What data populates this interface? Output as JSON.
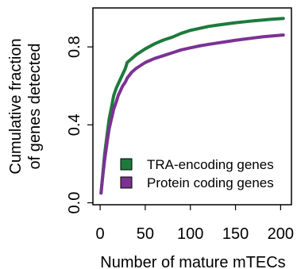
{
  "chart_data": {
    "type": "line",
    "title": "",
    "xlabel": "Number of mature mTECs",
    "ylabel_lines": [
      "Cumulative fraction",
      "of genes detected"
    ],
    "xlim": [
      -8,
      212
    ],
    "ylim": [
      -0.01,
      1.0
    ],
    "x_ticks": [
      0,
      50,
      100,
      150,
      200
    ],
    "x_tick_labels": [
      "0",
      "50",
      "100",
      "150",
      "200"
    ],
    "y_ticks": [
      0.0,
      0.4,
      0.8
    ],
    "y_tick_labels": [
      "0.0",
      "0.4",
      "0.8"
    ],
    "grid": false,
    "legend_position": "bottom-right",
    "series": [
      {
        "name": "TRA-encoding genes",
        "color": "#1e7a3c",
        "x": [
          1,
          3,
          5,
          8,
          10,
          13,
          15,
          18,
          20,
          23,
          25,
          28,
          30,
          35,
          40,
          50,
          60,
          70,
          80,
          90,
          100,
          110,
          120,
          130,
          140,
          150,
          160,
          170,
          180,
          190,
          200,
          203
        ],
        "y": [
          0.05,
          0.15,
          0.25,
          0.36,
          0.43,
          0.5,
          0.55,
          0.59,
          0.61,
          0.64,
          0.66,
          0.69,
          0.72,
          0.74,
          0.76,
          0.79,
          0.815,
          0.835,
          0.85,
          0.87,
          0.885,
          0.895,
          0.905,
          0.912,
          0.918,
          0.924,
          0.929,
          0.934,
          0.938,
          0.942,
          0.945,
          0.946
        ]
      },
      {
        "name": "Protein coding genes",
        "color": "#7b3294",
        "x": [
          1,
          3,
          5,
          8,
          10,
          13,
          15,
          18,
          20,
          23,
          25,
          28,
          30,
          35,
          40,
          50,
          60,
          70,
          80,
          90,
          100,
          110,
          120,
          130,
          140,
          150,
          160,
          170,
          180,
          190,
          200,
          203
        ],
        "y": [
          0.05,
          0.14,
          0.22,
          0.32,
          0.38,
          0.44,
          0.48,
          0.52,
          0.55,
          0.58,
          0.6,
          0.62,
          0.64,
          0.67,
          0.69,
          0.72,
          0.74,
          0.755,
          0.77,
          0.785,
          0.795,
          0.805,
          0.813,
          0.82,
          0.827,
          0.834,
          0.84,
          0.846,
          0.852,
          0.856,
          0.86,
          0.861
        ]
      }
    ]
  }
}
